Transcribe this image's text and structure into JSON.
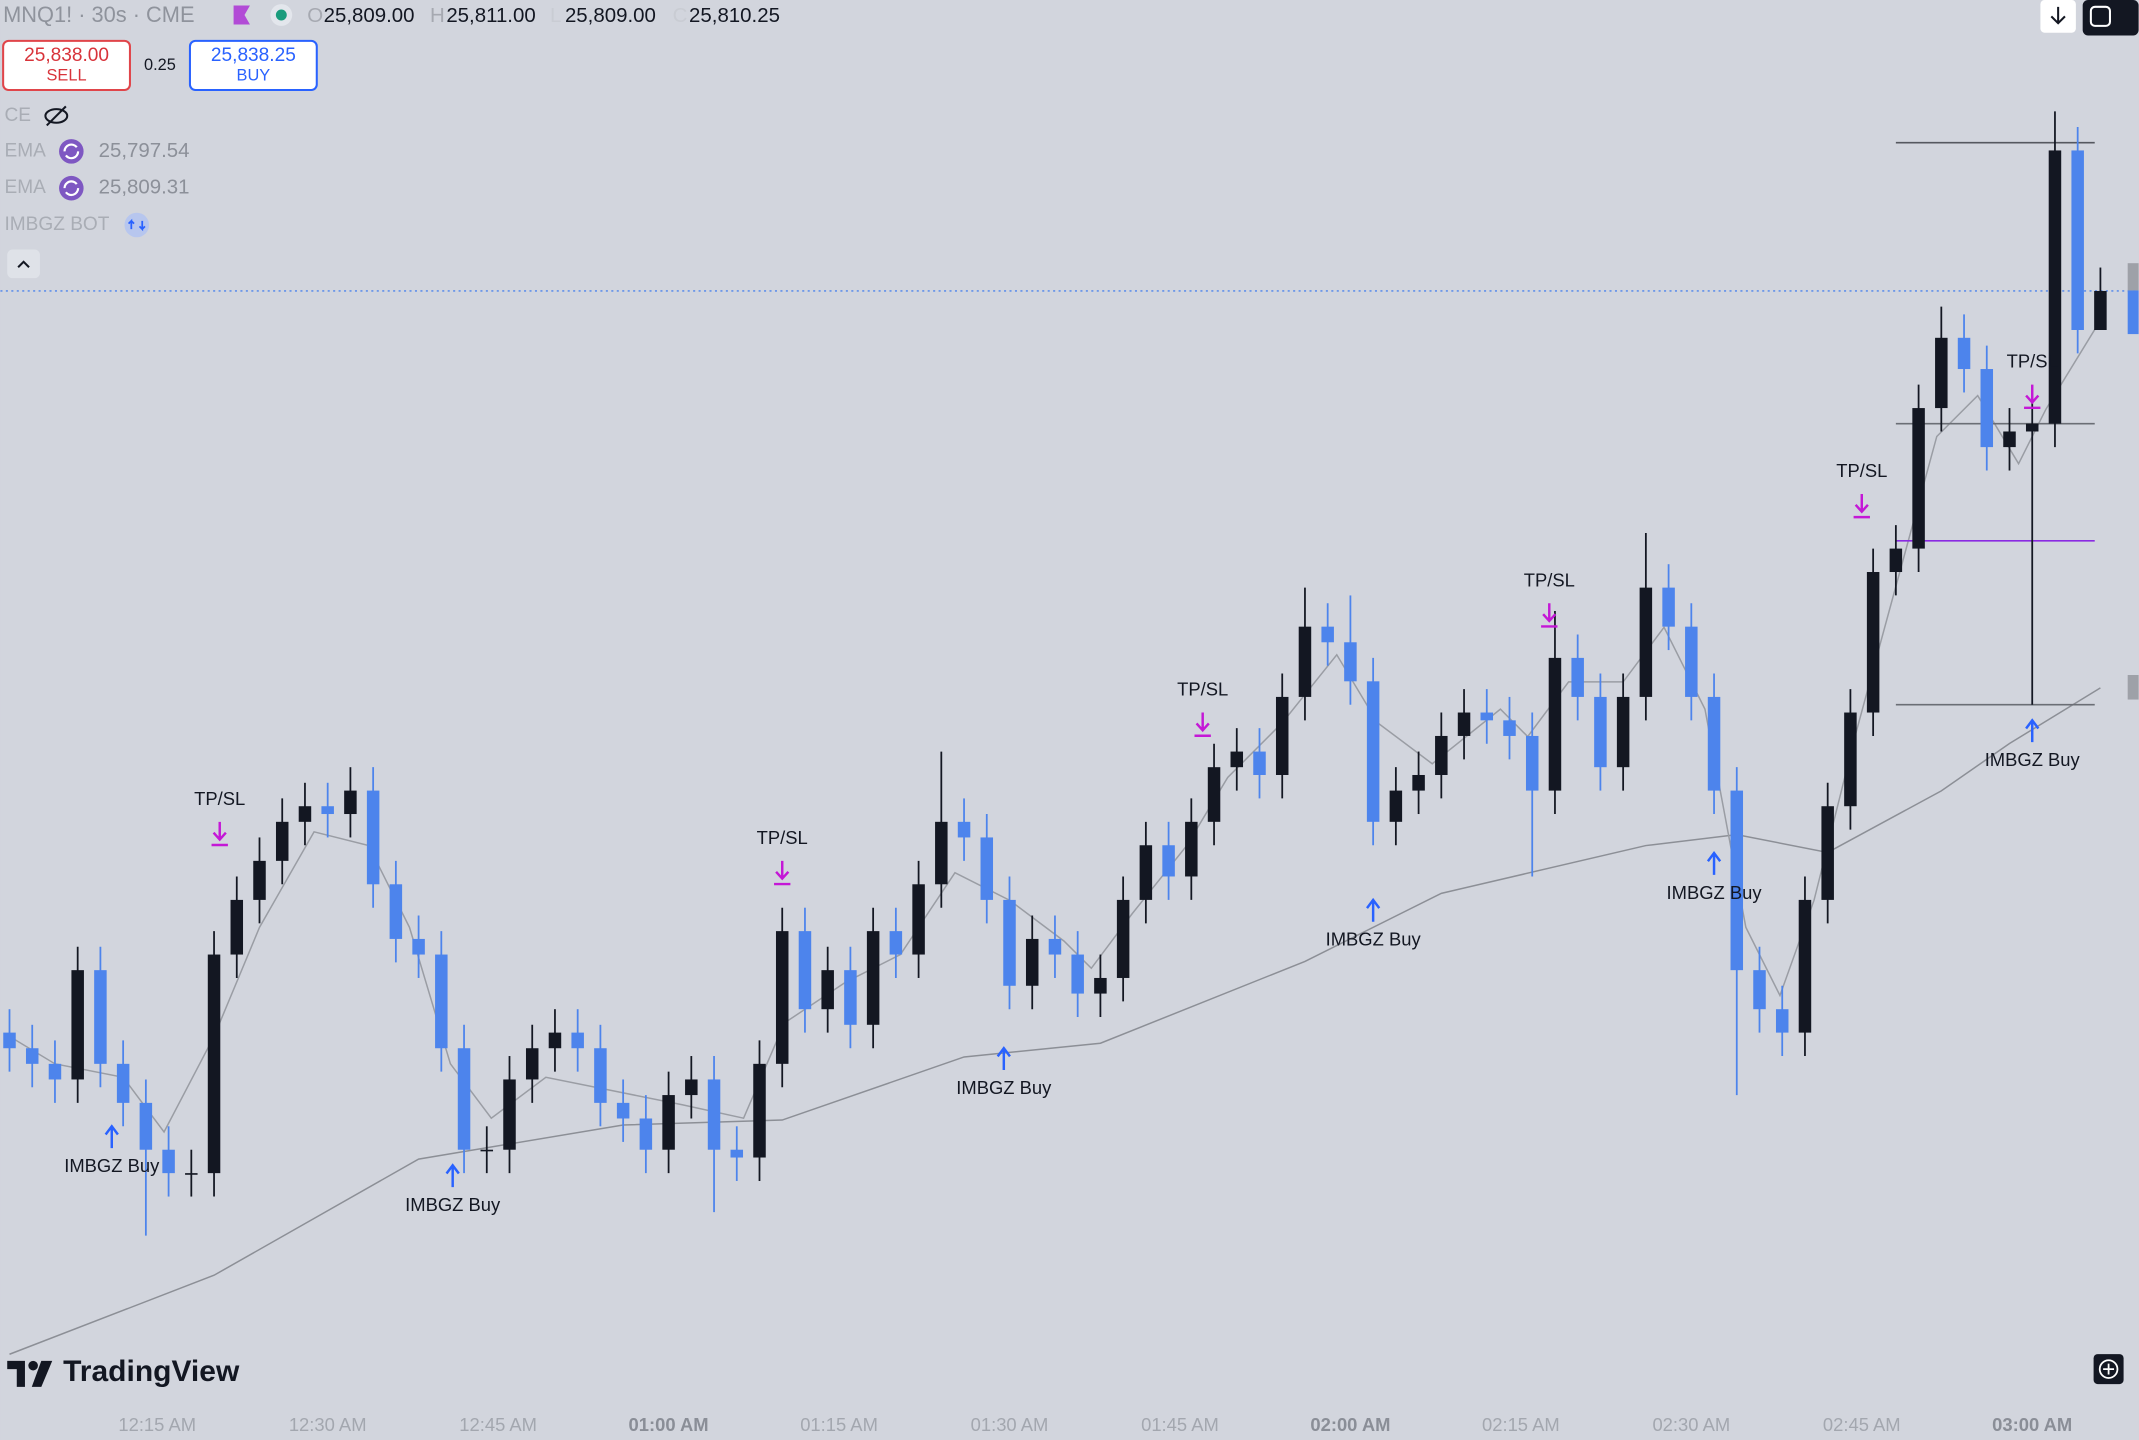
{
  "header": {
    "symbol": "MNQ1! · 30s · CME",
    "ohlc": [
      {
        "key": "O",
        "value": "25,809.00"
      },
      {
        "key": "H",
        "value": "25,811.00"
      },
      {
        "key": "L",
        "value": "25,809.00"
      },
      {
        "key": "C",
        "value": "25,810.25"
      }
    ]
  },
  "trade": {
    "sell_price": "25,838.00",
    "sell": "SELL",
    "spread": "0.25",
    "buy_price": "25,838.25",
    "buy": "BUY"
  },
  "indicators": [
    {
      "name": "CE"
    },
    {
      "name": "EMA",
      "value": "25,797.54"
    },
    {
      "name": "EMA",
      "value": "25,809.31"
    },
    {
      "name": "IMBGZ BOT"
    }
  ],
  "brand": "TradingView",
  "chart_data": {
    "type": "candlestick",
    "up_color": "#131722",
    "down_color": "#4d84ec",
    "xlim": [
      1.2,
      189.36
    ],
    "ylim": [
      25776,
      25819
    ],
    "xticks": [
      {
        "value": 15,
        "label": "12:15 AM",
        "bold": false
      },
      {
        "value": 30,
        "label": "12:30 AM",
        "bold": false
      },
      {
        "value": 45,
        "label": "12:45 AM",
        "bold": false
      },
      {
        "value": 60,
        "label": "01:00 AM",
        "bold": true
      },
      {
        "value": 75,
        "label": "01:15 AM",
        "bold": false
      },
      {
        "value": 90,
        "label": "01:30 AM",
        "bold": false
      },
      {
        "value": 105,
        "label": "01:45 AM",
        "bold": false
      },
      {
        "value": 120,
        "label": "02:00 AM",
        "bold": true
      },
      {
        "value": 135,
        "label": "02:15 AM",
        "bold": false
      },
      {
        "value": 150,
        "label": "02:30 AM",
        "bold": false
      },
      {
        "value": 165,
        "label": "02:45 AM",
        "bold": false
      },
      {
        "value": 180,
        "label": "03:00 AM",
        "bold": true
      }
    ],
    "x": [
      2,
      4,
      6,
      8,
      10,
      12,
      14,
      16,
      18,
      20,
      22,
      24,
      26,
      28,
      30,
      32,
      34,
      36,
      38,
      40,
      42,
      44,
      46,
      48,
      50,
      52,
      54,
      56,
      58,
      60,
      62,
      64,
      66,
      68,
      70,
      72,
      74,
      76,
      78,
      80,
      82,
      84,
      86,
      88,
      90,
      92,
      94,
      96,
      98,
      100,
      102,
      104,
      106,
      108,
      110,
      112,
      114,
      116,
      118,
      120,
      122,
      124,
      126,
      128,
      130,
      132,
      134,
      136,
      138,
      140,
      142,
      144,
      146,
      148,
      150,
      152,
      154,
      156,
      158,
      160,
      162,
      164,
      166,
      168,
      170,
      172,
      174,
      176,
      178,
      180,
      182,
      184,
      186
    ],
    "open": [
      25786.5,
      25786.0,
      25785.5,
      25785.0,
      25788.5,
      25785.5,
      25784.25,
      25782.75,
      25782.0,
      25782.0,
      25789.0,
      25790.75,
      25792.0,
      25793.25,
      25793.75,
      25793.5,
      25794.25,
      25791.25,
      25789.5,
      25789.0,
      25786.0,
      25782.75,
      25782.75,
      25785.0,
      25786.0,
      25786.5,
      25786.0,
      25784.25,
      25783.75,
      25782.75,
      25784.5,
      25785.0,
      25782.75,
      25782.5,
      25785.5,
      25789.75,
      25787.25,
      25788.5,
      25786.75,
      25789.75,
      25789.0,
      25791.25,
      25793.25,
      25792.75,
      25790.75,
      25788.0,
      25789.5,
      25789.0,
      25787.75,
      25788.25,
      25790.75,
      25792.5,
      25791.5,
      25793.25,
      25795.0,
      25795.5,
      25794.75,
      25797.25,
      25799.5,
      25799.0,
      25797.75,
      25793.25,
      25794.25,
      25794.75,
      25796.0,
      25796.75,
      25796.5,
      25796.0,
      25794.25,
      25798.5,
      25797.25,
      25795.0,
      25797.25,
      25800.75,
      25799.5,
      25797.25,
      25794.25,
      25788.5,
      25787.25,
      25786.5,
      25790.75,
      25793.75,
      25796.75,
      25801.25,
      25802.0,
      25806.5,
      25808.75,
      25807.75,
      25805.25,
      25805.75,
      25806.0,
      25814.75,
      25809.0
    ],
    "high": [
      25787.25,
      25786.75,
      25786.25,
      25789.25,
      25789.25,
      25786.25,
      25785.0,
      25783.5,
      25782.75,
      25789.75,
      25791.5,
      25792.75,
      25794.0,
      25794.5,
      25794.5,
      25795.0,
      25795.0,
      25792.0,
      25790.25,
      25789.75,
      25786.75,
      25783.5,
      25785.75,
      25786.75,
      25787.25,
      25787.25,
      25786.75,
      25785.0,
      25784.5,
      25785.25,
      25785.75,
      25785.75,
      25783.5,
      25786.25,
      25790.5,
      25790.5,
      25789.25,
      25789.25,
      25790.5,
      25790.5,
      25792.0,
      25795.5,
      25794.0,
      25793.5,
      25791.5,
      25790.25,
      25790.25,
      25789.75,
      25789.0,
      25791.5,
      25793.25,
      25793.25,
      25794.0,
      25795.75,
      25796.25,
      25796.25,
      25798.0,
      25800.75,
      25800.25,
      25800.5,
      25798.5,
      25795.0,
      25795.5,
      25796.75,
      25797.5,
      25797.5,
      25797.25,
      25796.75,
      25800.0,
      25799.25,
      25798.0,
      25798.0,
      25802.5,
      25801.5,
      25800.25,
      25798.0,
      25795.0,
      25789.25,
      25788.0,
      25791.5,
      25794.5,
      25797.5,
      25802.0,
      25802.75,
      25807.25,
      25809.75,
      25809.5,
      25808.5,
      25806.5,
      25806.75,
      25816.0,
      25815.5,
      25811.0
    ],
    "low": [
      25785.25,
      25784.75,
      25784.25,
      25784.25,
      25784.75,
      25783.5,
      25780.0,
      25781.25,
      25781.25,
      25781.25,
      25788.25,
      25790.0,
      25791.25,
      25792.5,
      25792.75,
      25792.75,
      25790.5,
      25788.75,
      25788.25,
      25785.25,
      25782.0,
      25782.0,
      25782.0,
      25784.25,
      25785.25,
      25785.25,
      25783.5,
      25783.0,
      25782.0,
      25782.0,
      25783.75,
      25780.75,
      25781.75,
      25781.75,
      25784.75,
      25786.5,
      25786.5,
      25786.0,
      25786.0,
      25788.25,
      25788.25,
      25790.5,
      25792.0,
      25790.0,
      25787.25,
      25787.25,
      25788.25,
      25787.0,
      25787.0,
      25787.5,
      25790.0,
      25790.75,
      25790.75,
      25792.5,
      25794.25,
      25794.0,
      25794.0,
      25796.5,
      25798.25,
      25797.0,
      25792.5,
      25792.5,
      25793.5,
      25794.0,
      25795.25,
      25795.75,
      25795.25,
      25791.5,
      25793.5,
      25796.5,
      25794.25,
      25794.25,
      25796.5,
      25798.75,
      25796.5,
      25793.5,
      25784.5,
      25786.5,
      25785.75,
      25785.75,
      25790.0,
      25793.0,
      25796.0,
      25800.5,
      25801.25,
      25805.75,
      25807.0,
      25804.5,
      25804.5,
      25797.0,
      25805.25,
      25808.25,
      25809.0
    ],
    "close": [
      25786.0,
      25785.5,
      25785.0,
      25788.5,
      25785.5,
      25784.25,
      25782.75,
      25782.0,
      25782.0,
      25789.0,
      25790.75,
      25792.0,
      25793.25,
      25793.75,
      25793.5,
      25794.25,
      25791.25,
      25789.5,
      25789.0,
      25786.0,
      25782.75,
      25782.75,
      25785.0,
      25786.0,
      25786.5,
      25786.0,
      25784.25,
      25783.75,
      25782.75,
      25784.5,
      25785.0,
      25782.75,
      25782.5,
      25785.5,
      25789.75,
      25787.25,
      25788.5,
      25786.75,
      25789.75,
      25789.0,
      25791.25,
      25793.25,
      25792.75,
      25790.75,
      25788.0,
      25789.5,
      25789.0,
      25787.75,
      25788.25,
      25790.75,
      25792.5,
      25791.5,
      25793.25,
      25795.0,
      25795.5,
      25794.75,
      25797.25,
      25799.5,
      25799.0,
      25797.75,
      25793.25,
      25794.25,
      25794.75,
      25796.0,
      25796.75,
      25796.5,
      25796.0,
      25794.25,
      25798.5,
      25797.25,
      25795.0,
      25797.25,
      25800.75,
      25799.5,
      25797.25,
      25794.25,
      25788.5,
      25787.25,
      25786.5,
      25790.75,
      25793.75,
      25796.75,
      25801.25,
      25802.0,
      25806.5,
      25808.75,
      25807.75,
      25805.25,
      25805.75,
      25806.0,
      25814.75,
      25809.0,
      25810.25
    ],
    "lines": [
      {
        "color": "#8c8f96",
        "x": [
          2,
          20,
          38,
          56,
          70,
          86,
          98,
          116,
          128,
          146,
          154,
          162,
          172,
          178,
          186
        ],
        "values": [
          25776.2,
          25778.73,
          25782.45,
          25783.54,
          25783.7,
          25785.72,
          25786.16,
          25788.78,
          25790.96,
          25792.49,
          25792.84,
          25792.27,
          25794.24,
          25795.76,
          25797.54
        ]
      },
      {
        "color": "#9a9da4",
        "x": [
          2.0,
          6.0,
          12.0,
          15.6,
          20.0,
          24.0,
          28.8,
          33.6,
          37.2,
          40.8,
          44.4,
          49.2,
          55.2,
          61.2,
          66.6,
          70.2,
          75.6,
          80.4,
          85.2,
          90.0,
          94.8,
          97.2,
          100.8,
          105.6,
          109.2,
          114.0,
          118.8,
          122.4,
          127.2,
          133.2,
          135.6,
          139.2,
          144.0,
          147.6,
          151.2,
          154.8,
          157.8,
          160.8,
          164.4,
          168.0,
          171.6,
          175.2,
          178.8,
          181.2,
          186.0
        ],
        "values": [
          25786.38,
          25785.5,
          25785.07,
          25783.32,
          25786.38,
          25789.87,
          25792.93,
          25792.49,
          25789.87,
          25785.5,
          25783.76,
          25785.07,
          25784.63,
          25784.19,
          25783.76,
          25786.81,
          25788.12,
          25789.0,
          25791.62,
          25790.74,
          25789.43,
          25788.56,
          25790.31,
          25792.49,
          25794.67,
          25796.42,
          25798.6,
          25796.42,
          25795.11,
          25796.86,
          25795.98,
          25797.73,
          25797.73,
          25799.48,
          25796.86,
          25789.87,
          25787.69,
          25790.74,
          25795.98,
          25800.79,
          25805.59,
          25806.9,
          25804.72,
          25806.46,
          25809.31
        ]
      }
    ],
    "signals": [
      {
        "label": "IMBGZ Buy",
        "x": 11,
        "y": 25783.5,
        "arrow": "up",
        "color": "#2962ff"
      },
      {
        "label": "IMBGZ Buy",
        "x": 41,
        "y": 25782.25,
        "arrow": "up",
        "color": "#2962ff"
      },
      {
        "label": "IMBGZ Buy",
        "x": 89.5,
        "y": 25786,
        "arrow": "up",
        "color": "#2962ff"
      },
      {
        "label": "IMBGZ Buy",
        "x": 122,
        "y": 25790.75,
        "arrow": "up",
        "color": "#2962ff"
      },
      {
        "label": "IMBGZ Buy",
        "x": 152,
        "y": 25792.25,
        "arrow": "up",
        "color": "#2962ff"
      },
      {
        "label": "IMBGZ Buy",
        "x": 180,
        "y": 25796.5,
        "arrow": "up",
        "color": "#2962ff"
      },
      {
        "label": "TP/SL",
        "x": 20.5,
        "y": 25793.25,
        "arrow": "down",
        "color": "#c418d6"
      },
      {
        "label": "TP/SL",
        "x": 70,
        "y": 25792,
        "arrow": "down",
        "color": "#c418d6"
      },
      {
        "label": "TP/SL",
        "x": 107,
        "y": 25796.75,
        "arrow": "down",
        "color": "#c418d6"
      },
      {
        "label": "TP/SL",
        "x": 137.5,
        "y": 25800.25,
        "arrow": "down",
        "color": "#c418d6"
      },
      {
        "label": "TP/SL",
        "x": 165,
        "y": 25803.75,
        "arrow": "down",
        "color": "#c418d6"
      },
      {
        "label": "TP/SL",
        "x": 180,
        "y": 25807.25,
        "arrow": "down",
        "color": "#c418d6"
      }
    ],
    "levels": [
      {
        "y": 25815.0,
        "color": "#55585f"
      },
      {
        "y": 25806.0,
        "color": "#6b6e75"
      },
      {
        "y": 25802.25,
        "color": "#8a2be2"
      },
      {
        "y": 25797.0,
        "color": "#6b6e75"
      }
    ],
    "level_span": [
      168,
      185.5
    ],
    "price_line": 25810.25,
    "price_line_color": "#4d84ec"
  }
}
